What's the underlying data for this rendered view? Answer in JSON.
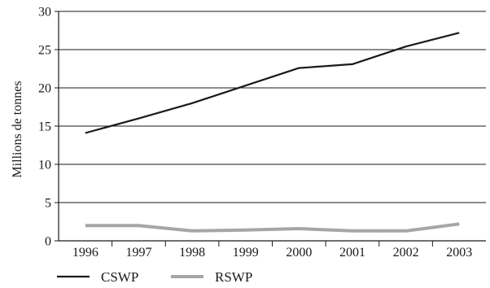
{
  "chart_data": {
    "type": "line",
    "title": "",
    "xlabel": "",
    "ylabel": "Millions de tonnes",
    "categories": [
      "1996",
      "1997",
      "1998",
      "1999",
      "2000",
      "2001",
      "2002",
      "2003"
    ],
    "ylim": [
      0,
      30
    ],
    "yticks": [
      0,
      5,
      10,
      15,
      20,
      25,
      30
    ],
    "grid": "horizontal",
    "legend_position": "bottom-left",
    "series": [
      {
        "name": "CSWP",
        "color": "#1a1a1a",
        "values": [
          14.1,
          16.0,
          18.0,
          20.3,
          22.6,
          23.1,
          25.4,
          27.2
        ]
      },
      {
        "name": "RSWP",
        "color": "#a6a6a6",
        "values": [
          2.0,
          2.0,
          1.3,
          1.4,
          1.6,
          1.3,
          1.3,
          2.2
        ]
      }
    ]
  }
}
